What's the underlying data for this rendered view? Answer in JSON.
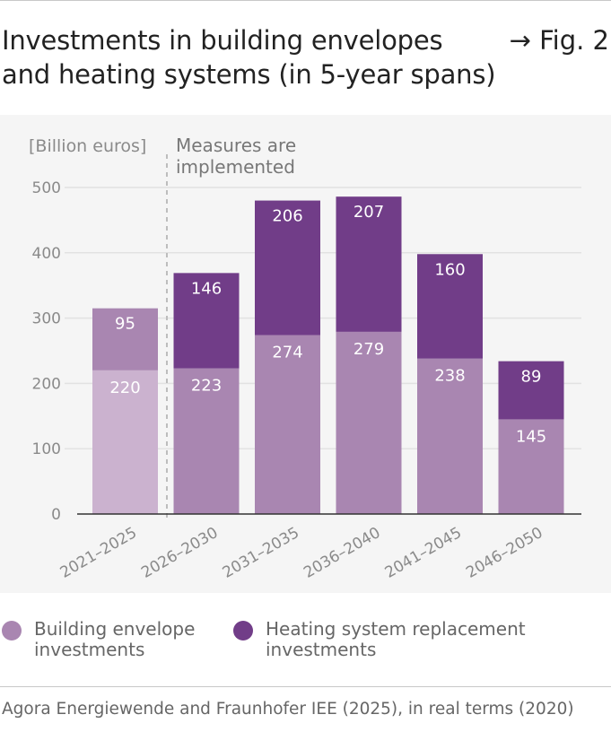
{
  "header": {
    "title_line1": "Investments in building envelopes",
    "title_line2": "and heating systems (in 5-year spans)",
    "fig_ref": "→ Fig. 2"
  },
  "chart_data": {
    "type": "bar",
    "stacked": true,
    "unit_label": "[Billion euros]",
    "annotation": "Measures are implemented",
    "categories": [
      "2021–2025",
      "2026–2030",
      "2031–2035",
      "2036–2040",
      "2041–2045",
      "2046–2050"
    ],
    "series": [
      {
        "name": "Building envelope investments",
        "values": [
          220,
          223,
          274,
          279,
          238,
          145
        ],
        "color": "#a986b1",
        "first_color": "#cbb2cf"
      },
      {
        "name": "Heating system replacement investments",
        "values": [
          95,
          146,
          206,
          207,
          160,
          89
        ],
        "color": "#713d88",
        "first_color": "#a986b1"
      }
    ],
    "yticks": [
      0,
      100,
      200,
      300,
      400,
      500
    ],
    "ylim": [
      0,
      500
    ],
    "grid": true,
    "legend_position": "bottom"
  },
  "legend": [
    {
      "label_line1": "Building envelope",
      "label_line2": "investments",
      "color": "#a986b1"
    },
    {
      "label_line1": "Heating system replacement",
      "label_line2": "investments",
      "color": "#713d88"
    }
  ],
  "source": "Agora Energiewende and Fraunhofer IEE (2025), in real terms (2020)"
}
